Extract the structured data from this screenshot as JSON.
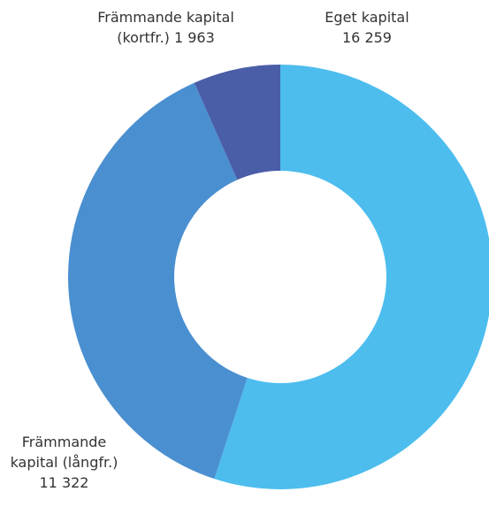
{
  "chart_data": {
    "type": "donut",
    "categories": [
      "Eget kapital",
      "Främmande kapital (långfr.)",
      "Främmande kapital (kortfr.)"
    ],
    "values": [
      16259,
      11322,
      1963
    ],
    "value_labels": [
      "16 259",
      "11 322",
      "1 963"
    ],
    "colors": [
      "#4dbdee",
      "#4a8fd0",
      "#4a5ea8"
    ]
  }
}
